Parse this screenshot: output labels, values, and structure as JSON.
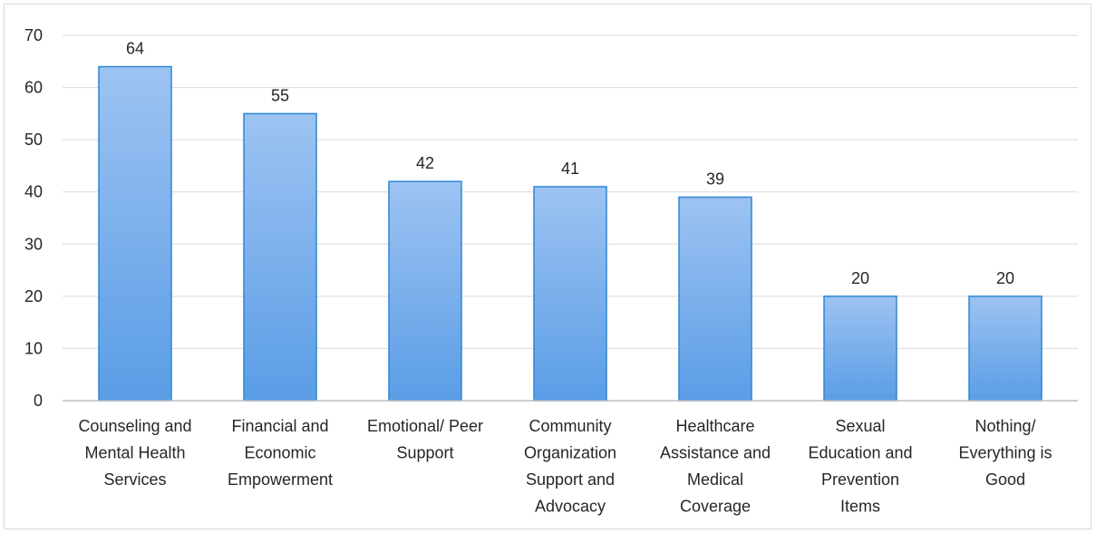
{
  "chart_data": {
    "type": "bar",
    "categories": [
      [
        "Counseling and",
        "Mental Health",
        "Services"
      ],
      [
        "Financial and",
        "Economic",
        "Empowerment"
      ],
      [
        "Emotional/ Peer",
        "Support"
      ],
      [
        "Community",
        "Organization",
        "Support and",
        "Advocacy"
      ],
      [
        "Healthcare",
        "Assistance and",
        "Medical",
        "Coverage"
      ],
      [
        "Sexual",
        "Education and",
        "Prevention",
        "Items"
      ],
      [
        "Nothing/",
        "Everything is",
        "Good"
      ]
    ],
    "values": [
      64,
      55,
      42,
      41,
      39,
      20,
      20
    ],
    "data_labels": [
      "64",
      "55",
      "42",
      "41",
      "39",
      "20",
      "20"
    ],
    "title": "",
    "xlabel": "",
    "ylabel": "",
    "ylim": [
      0,
      70
    ],
    "yticks": [
      0,
      10,
      20,
      30,
      40,
      50,
      60,
      70
    ],
    "grid": true,
    "legend": "none",
    "colors": {
      "bar_top": "#9dc3f2",
      "bar_bottom": "#5a9de6",
      "bar_border": "#2e86d6",
      "gridline": "#d9d9d9",
      "axis": "#bfbfbf",
      "text": "#262626"
    }
  }
}
